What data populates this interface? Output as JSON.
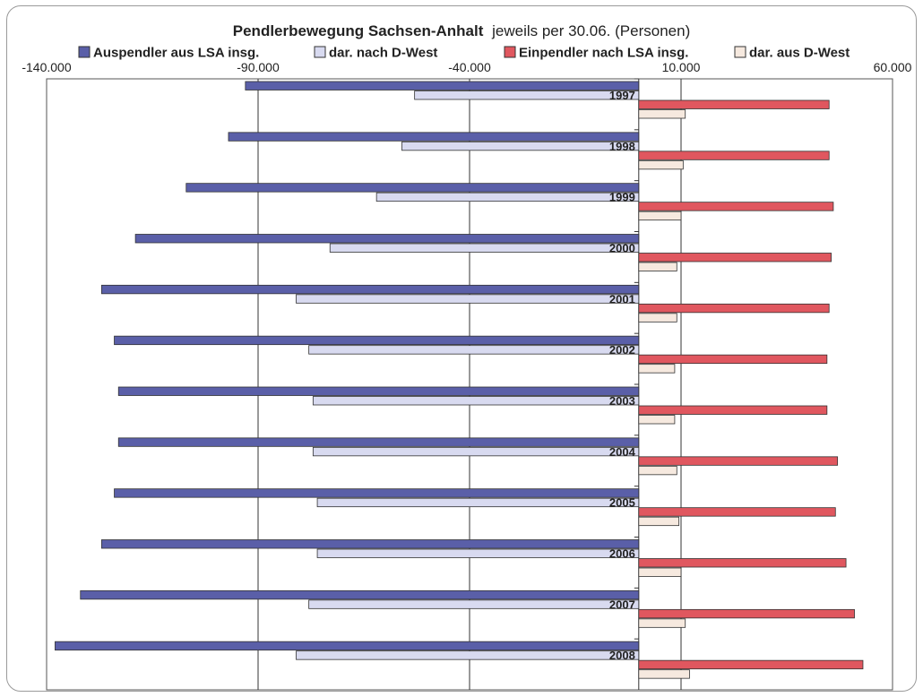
{
  "chart_data": {
    "type": "bar",
    "orientation": "horizontal",
    "title_bold": "Pendlerbewegung Sachsen-Anhalt",
    "title_rest": "jeweils per 30.06. (Personen)",
    "legend_position": "top",
    "grid": true,
    "xlim": [
      -140000,
      60000
    ],
    "x_ticks": [
      -140000,
      -90000,
      -40000,
      10000,
      60000
    ],
    "x_tick_labels": [
      "-140.000",
      "-90.000",
      "-40.000",
      "10.000",
      "60.000"
    ],
    "categories": [
      "1997",
      "1998",
      "1999",
      "2000",
      "2001",
      "2002",
      "2003",
      "2004",
      "2005",
      "2006",
      "2007",
      "2008"
    ],
    "series": [
      {
        "name": "Auspendler aus LSA insg.",
        "color": "#5a5fa8",
        "values": [
          -93000,
          -97000,
          -107000,
          -119000,
          -127000,
          -124000,
          -123000,
          -123000,
          -124000,
          -127000,
          -132000,
          -138000
        ]
      },
      {
        "name": "dar. nach D-West",
        "color": "#d8daf0",
        "values": [
          -53000,
          -56000,
          -62000,
          -73000,
          -81000,
          -78000,
          -77000,
          -77000,
          -76000,
          -76000,
          -78000,
          -81000
        ]
      },
      {
        "name": "Einpendler nach LSA insg.",
        "color": "#e0575f",
        "values": [
          45000,
          45000,
          46000,
          45500,
          45000,
          44500,
          44500,
          47000,
          46500,
          49000,
          51000,
          53000
        ]
      },
      {
        "name": "dar. aus D-West",
        "color": "#f6e9df",
        "values": [
          11000,
          10500,
          10000,
          9000,
          9000,
          8500,
          8500,
          9000,
          9500,
          10000,
          11000,
          12000
        ]
      }
    ]
  }
}
